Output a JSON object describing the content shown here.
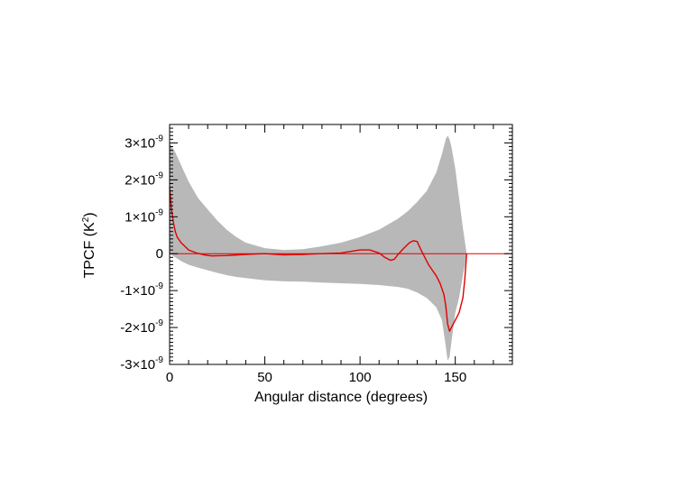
{
  "chart_data": {
    "type": "line",
    "xlabel": "Angular distance (degrees)",
    "ylabel": "TPCF (K",
    "ylabel_sup": "2",
    "ylabel_close": ")",
    "xlim": [
      0,
      180
    ],
    "ylim": [
      -3e-09,
      3.5e-09
    ],
    "x_ticks": [
      0,
      50,
      100,
      150
    ],
    "x_tick_labels": [
      "0",
      "50",
      "100",
      "150"
    ],
    "y_ticks": [
      {
        "value": 3e-09,
        "mantissa": "3×10",
        "exp": "-9"
      },
      {
        "value": 2e-09,
        "mantissa": "2×10",
        "exp": "-9"
      },
      {
        "value": 1e-09,
        "mantissa": "1×10",
        "exp": "-9"
      },
      {
        "value": 0,
        "mantissa": "0",
        "exp": ""
      },
      {
        "value": -1e-09,
        "mantissa": "-1×10",
        "exp": "-9"
      },
      {
        "value": -2e-09,
        "mantissa": "-2×10",
        "exp": "-9"
      },
      {
        "value": -3e-09,
        "mantissa": "-3×10",
        "exp": "-9"
      }
    ],
    "zero_line": true,
    "band": {
      "x": [
        0,
        3,
        6,
        10,
        15,
        20,
        25,
        30,
        35,
        40,
        50,
        60,
        70,
        80,
        90,
        100,
        110,
        120,
        125,
        130,
        135,
        140,
        143,
        145,
        146,
        147,
        148,
        150,
        152,
        154,
        156
      ],
      "upper": [
        3e-09,
        2.75e-09,
        2.4e-09,
        1.95e-09,
        1.5e-09,
        1.2e-09,
        9e-10,
        6.5e-10,
        4.5e-10,
        3e-10,
        1.5e-10,
        1e-10,
        1.2e-10,
        2e-10,
        3e-10,
        4.5e-10,
        6.5e-10,
        9.5e-10,
        1.15e-09,
        1.4e-09,
        1.7e-09,
        2.2e-09,
        2.7e-09,
        3.1e-09,
        3.2e-09,
        3.1e-09,
        2.9e-09,
        2.3e-09,
        1.5e-09,
        7e-10,
        0.0
      ],
      "lower": [
        0.0,
        -1e-10,
        -2e-10,
        -3e-10,
        -3.8e-10,
        -4.5e-10,
        -5.2e-10,
        -5.8e-10,
        -6.3e-10,
        -6.6e-10,
        -7.2e-10,
        -7.5e-10,
        -7.6e-10,
        -7.8e-10,
        -8e-10,
        -8.2e-10,
        -8.5e-10,
        -9e-10,
        -9.5e-10,
        -1.05e-09,
        -1.2e-09,
        -1.45e-09,
        -1.8e-09,
        -2.5e-09,
        -2.9e-09,
        -2.8e-09,
        -2.4e-09,
        -1.6e-09,
        -1.2e-09,
        -6e-10,
        0.0
      ],
      "color": "#b8b8b8"
    },
    "series": [
      {
        "color": "#e00000",
        "x": [
          0,
          1,
          2,
          3,
          4,
          6,
          8,
          10,
          14,
          18,
          22,
          30,
          40,
          50,
          60,
          70,
          80,
          90,
          100,
          105,
          110,
          113,
          116,
          118,
          120,
          123,
          126,
          128,
          130,
          132,
          134,
          136,
          138,
          140,
          142,
          144,
          145,
          146,
          147,
          148,
          150,
          152,
          154,
          155,
          156
        ],
        "y": [
          1.8e-09,
          1.2e-09,
          8.5e-10,
          6e-10,
          4.5e-10,
          3e-10,
          2e-10,
          1e-10,
          2e-11,
          -3e-11,
          -6e-11,
          -5e-11,
          -2e-11,
          0.0,
          -3e-11,
          -2e-11,
          0.0,
          2e-11,
          1e-10,
          1e-10,
          2e-11,
          -1e-10,
          -1.8e-10,
          -1.5e-10,
          -2e-11,
          1.5e-10,
          3e-10,
          3.5e-10,
          3.3e-10,
          1e-10,
          -1e-10,
          -3e-10,
          -4.5e-10,
          -6e-10,
          -8e-10,
          -1.1e-09,
          -1.4e-09,
          -1.9e-09,
          -2.1e-09,
          -2e-09,
          -1.8e-09,
          -1.6e-09,
          -1.2e-09,
          -7e-10,
          0.0
        ]
      }
    ],
    "grid": false,
    "legend": "none"
  }
}
